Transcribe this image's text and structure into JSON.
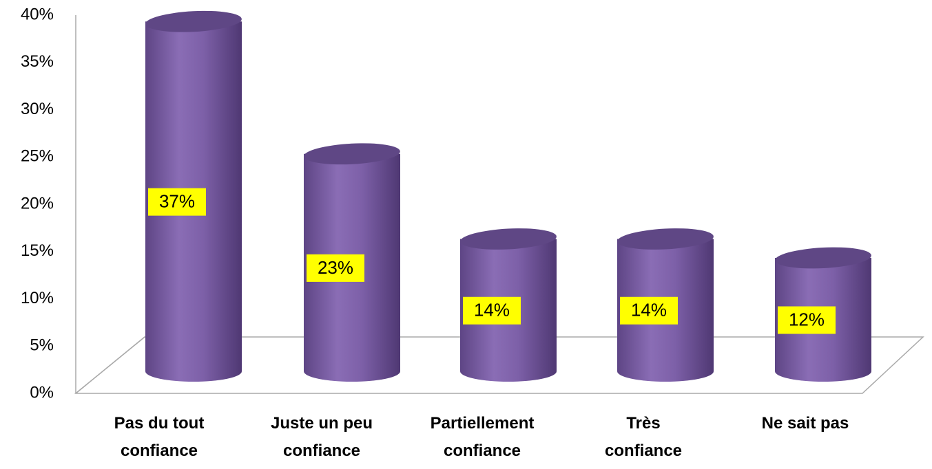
{
  "chart_data": {
    "type": "bar",
    "categories": [
      "Pas du tout\nconfiance",
      "Juste un peu\nconfiance",
      "Partiellement\nconfiance",
      "Très\nconfiance",
      "Ne sait pas"
    ],
    "values": [
      37,
      23,
      14,
      14,
      12
    ],
    "value_labels": [
      "37%",
      "23%",
      "14%",
      "14%",
      "12%"
    ],
    "color": "#7f62a8",
    "ylim": [
      0,
      40
    ],
    "yticks": [
      {
        "value": 0,
        "label": "0%"
      },
      {
        "value": 5,
        "label": "5%"
      },
      {
        "value": 10,
        "label": "10%"
      },
      {
        "value": 15,
        "label": "15%"
      },
      {
        "value": 20,
        "label": "20%"
      },
      {
        "value": 25,
        "label": "25%"
      },
      {
        "value": 30,
        "label": "30%"
      },
      {
        "value": 35,
        "label": "35%"
      },
      {
        "value": 40,
        "label": "40%"
      }
    ]
  }
}
